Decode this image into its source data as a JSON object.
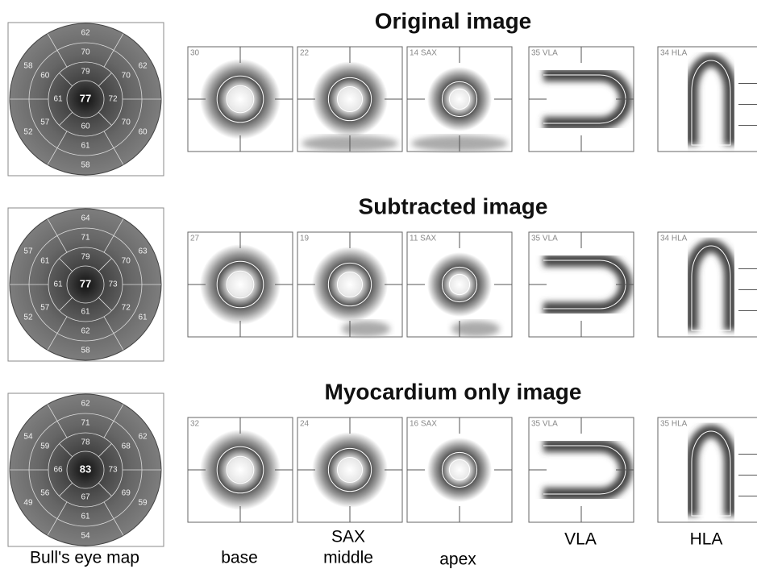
{
  "rows": [
    {
      "title": "Original image",
      "bullseye": {
        "center": 77,
        "apical": [
          79,
          72,
          60,
          61
        ],
        "mid": [
          70,
          70,
          70,
          61,
          57,
          60
        ],
        "basal": [
          62,
          62,
          60,
          58,
          52,
          58
        ]
      },
      "panels": [
        "30",
        "22",
        "14 SAX",
        "35 VLA",
        "34 HLA"
      ]
    },
    {
      "title": "Subtracted image",
      "bullseye": {
        "center": 77,
        "apical": [
          79,
          73,
          61,
          61
        ],
        "mid": [
          71,
          70,
          72,
          62,
          57,
          61
        ],
        "basal": [
          64,
          63,
          61,
          58,
          52,
          57
        ]
      },
      "panels": [
        "27",
        "19",
        "11 SAX",
        "35 VLA",
        "34 HLA"
      ]
    },
    {
      "title": "Myocardium only image",
      "bullseye": {
        "center": 83,
        "apical": [
          78,
          73,
          67,
          66
        ],
        "mid": [
          71,
          68,
          69,
          61,
          56,
          59
        ],
        "basal": [
          62,
          62,
          59,
          54,
          49,
          54
        ]
      },
      "panels": [
        "32",
        "24",
        "16 SAX",
        "35 VLA",
        "35 HLA"
      ]
    }
  ],
  "footer": {
    "bullseye": "Bull's eye map",
    "base": "base",
    "sax": "SAX",
    "middle": "middle",
    "apex": "apex",
    "vla": "VLA",
    "hla": "HLA"
  }
}
